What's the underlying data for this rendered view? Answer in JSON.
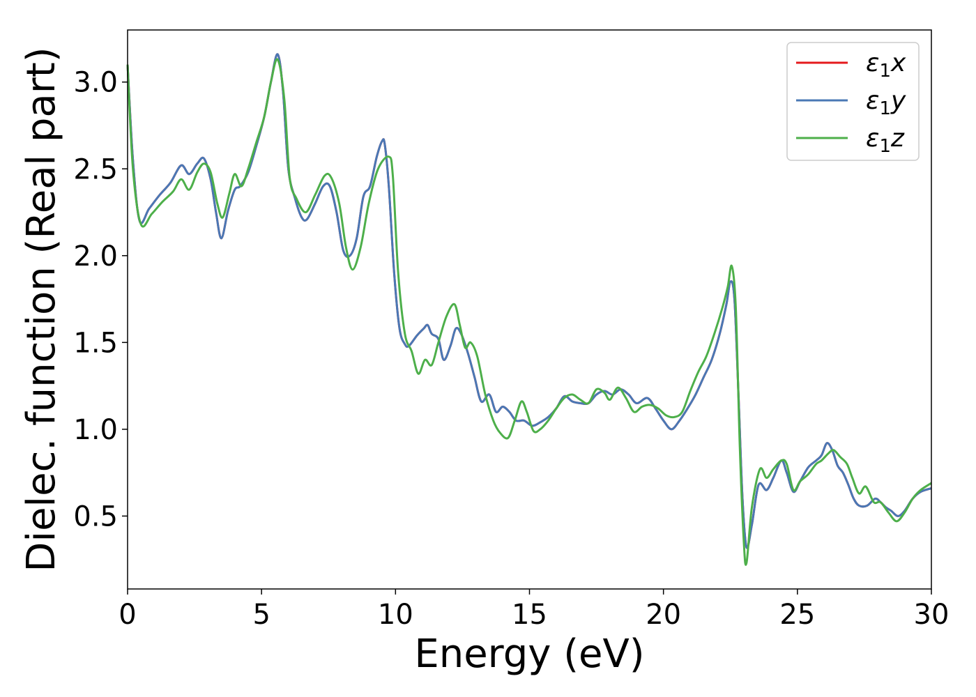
{
  "chart_data": {
    "type": "line",
    "xlabel": "Energy (eV)",
    "ylabel": "Dielec. function (Real part)",
    "xlim": [
      0,
      30
    ],
    "ylim": [
      0.08,
      3.3
    ],
    "x_ticks": [
      0,
      5,
      10,
      15,
      20,
      25,
      30
    ],
    "x_tick_labels": [
      "0",
      "5",
      "10",
      "15",
      "20",
      "25",
      "30"
    ],
    "y_ticks": [
      0.5,
      1.0,
      1.5,
      2.0,
      2.5,
      3.0
    ],
    "y_tick_labels": [
      "0.5",
      "1.0",
      "1.5",
      "2.0",
      "2.5",
      "3.0"
    ],
    "grid": false,
    "legend_position": "top-right",
    "series": [
      {
        "name": "ε₁x",
        "legend_main": "ε",
        "legend_sub": "1",
        "legend_var": "x",
        "color": "#e41a1c",
        "x": [
          0,
          0.2,
          0.45,
          0.8,
          1.2,
          1.6,
          2.0,
          2.3,
          2.6,
          2.85,
          3.1,
          3.3,
          3.5,
          3.75,
          4.0,
          4.2,
          4.5,
          4.8,
          5.1,
          5.35,
          5.6,
          5.8,
          6.0,
          6.25,
          6.5,
          6.7,
          7.0,
          7.3,
          7.55,
          7.8,
          8.05,
          8.3,
          8.55,
          8.8,
          9.05,
          9.3,
          9.5,
          9.6,
          9.75,
          9.95,
          10.15,
          10.35,
          10.5,
          10.8,
          11.05,
          11.2,
          11.35,
          11.6,
          11.8,
          12.05,
          12.25,
          12.45,
          12.7,
          12.95,
          13.2,
          13.5,
          13.75,
          14.0,
          14.25,
          14.5,
          14.8,
          15.1,
          15.4,
          15.7,
          16.0,
          16.3,
          16.6,
          16.9,
          17.2,
          17.5,
          17.8,
          18.1,
          18.4,
          18.7,
          19.0,
          19.4,
          19.7,
          20.0,
          20.3,
          20.6,
          20.9,
          21.2,
          21.5,
          21.8,
          22.1,
          22.35,
          22.5,
          22.65,
          22.8,
          22.95,
          23.1,
          23.3,
          23.55,
          23.85,
          24.1,
          24.4,
          24.6,
          24.85,
          25.1,
          25.4,
          25.7,
          25.9,
          26.1,
          26.3,
          26.5,
          26.7,
          26.9,
          27.1,
          27.3,
          27.6,
          27.9,
          28.1,
          28.3,
          28.5,
          28.75,
          29.0,
          29.3,
          29.6,
          30.0
        ],
        "values": [
          3.1,
          2.55,
          2.2,
          2.27,
          2.35,
          2.42,
          2.52,
          2.47,
          2.53,
          2.56,
          2.44,
          2.25,
          2.1,
          2.26,
          2.38,
          2.4,
          2.48,
          2.63,
          2.8,
          3.0,
          3.16,
          2.95,
          2.5,
          2.33,
          2.22,
          2.21,
          2.3,
          2.4,
          2.4,
          2.25,
          2.03,
          2.0,
          2.1,
          2.34,
          2.4,
          2.57,
          2.66,
          2.64,
          2.4,
          1.9,
          1.58,
          1.49,
          1.48,
          1.54,
          1.58,
          1.6,
          1.55,
          1.52,
          1.4,
          1.48,
          1.58,
          1.55,
          1.44,
          1.3,
          1.16,
          1.2,
          1.1,
          1.13,
          1.1,
          1.05,
          1.05,
          1.02,
          1.04,
          1.07,
          1.12,
          1.19,
          1.16,
          1.15,
          1.15,
          1.2,
          1.22,
          1.2,
          1.23,
          1.2,
          1.15,
          1.18,
          1.12,
          1.05,
          1.0,
          1.05,
          1.12,
          1.2,
          1.3,
          1.4,
          1.55,
          1.72,
          1.85,
          1.75,
          1.2,
          0.6,
          0.32,
          0.45,
          0.68,
          0.65,
          0.72,
          0.82,
          0.75,
          0.64,
          0.7,
          0.78,
          0.82,
          0.85,
          0.92,
          0.88,
          0.79,
          0.75,
          0.68,
          0.6,
          0.56,
          0.56,
          0.6,
          0.58,
          0.55,
          0.53,
          0.5,
          0.53,
          0.6,
          0.64,
          0.66
        ]
      },
      {
        "name": "ε₁y",
        "legend_main": "ε",
        "legend_sub": "1",
        "legend_var": "y",
        "color": "#4a78b5",
        "x": [
          0,
          0.2,
          0.45,
          0.8,
          1.2,
          1.6,
          2.0,
          2.3,
          2.6,
          2.85,
          3.1,
          3.3,
          3.5,
          3.75,
          4.0,
          4.2,
          4.5,
          4.8,
          5.1,
          5.35,
          5.6,
          5.8,
          6.0,
          6.25,
          6.5,
          6.7,
          7.0,
          7.3,
          7.55,
          7.8,
          8.05,
          8.3,
          8.55,
          8.8,
          9.05,
          9.3,
          9.5,
          9.6,
          9.75,
          9.95,
          10.15,
          10.35,
          10.5,
          10.8,
          11.05,
          11.2,
          11.35,
          11.6,
          11.8,
          12.05,
          12.25,
          12.45,
          12.7,
          12.95,
          13.2,
          13.5,
          13.75,
          14.0,
          14.25,
          14.5,
          14.8,
          15.1,
          15.4,
          15.7,
          16.0,
          16.3,
          16.6,
          16.9,
          17.2,
          17.5,
          17.8,
          18.1,
          18.4,
          18.7,
          19.0,
          19.4,
          19.7,
          20.0,
          20.3,
          20.6,
          20.9,
          21.2,
          21.5,
          21.8,
          22.1,
          22.35,
          22.5,
          22.65,
          22.8,
          22.95,
          23.1,
          23.3,
          23.55,
          23.85,
          24.1,
          24.4,
          24.6,
          24.85,
          25.1,
          25.4,
          25.7,
          25.9,
          26.1,
          26.3,
          26.5,
          26.7,
          26.9,
          27.1,
          27.3,
          27.6,
          27.9,
          28.1,
          28.3,
          28.5,
          28.75,
          29.0,
          29.3,
          29.6,
          30.0
        ],
        "values": [
          3.1,
          2.55,
          2.2,
          2.27,
          2.35,
          2.42,
          2.52,
          2.47,
          2.53,
          2.56,
          2.44,
          2.25,
          2.1,
          2.26,
          2.38,
          2.4,
          2.48,
          2.63,
          2.8,
          3.0,
          3.16,
          2.95,
          2.5,
          2.33,
          2.22,
          2.21,
          2.3,
          2.4,
          2.4,
          2.25,
          2.03,
          2.0,
          2.1,
          2.34,
          2.4,
          2.57,
          2.66,
          2.64,
          2.4,
          1.9,
          1.58,
          1.49,
          1.48,
          1.54,
          1.58,
          1.6,
          1.55,
          1.52,
          1.4,
          1.48,
          1.58,
          1.55,
          1.44,
          1.3,
          1.16,
          1.2,
          1.1,
          1.13,
          1.1,
          1.05,
          1.05,
          1.02,
          1.04,
          1.07,
          1.12,
          1.19,
          1.16,
          1.15,
          1.15,
          1.2,
          1.22,
          1.2,
          1.23,
          1.2,
          1.15,
          1.18,
          1.12,
          1.05,
          1.0,
          1.05,
          1.12,
          1.2,
          1.3,
          1.4,
          1.55,
          1.72,
          1.85,
          1.75,
          1.2,
          0.6,
          0.32,
          0.45,
          0.68,
          0.65,
          0.72,
          0.82,
          0.75,
          0.64,
          0.7,
          0.78,
          0.82,
          0.85,
          0.92,
          0.88,
          0.79,
          0.75,
          0.68,
          0.6,
          0.56,
          0.56,
          0.6,
          0.58,
          0.55,
          0.53,
          0.5,
          0.53,
          0.6,
          0.64,
          0.66
        ]
      },
      {
        "name": "ε₁z",
        "legend_main": "ε",
        "legend_sub": "1",
        "legend_var": "z",
        "color": "#4daf4a",
        "x": [
          0,
          0.2,
          0.5,
          0.9,
          1.3,
          1.7,
          2.0,
          2.3,
          2.6,
          2.85,
          3.1,
          3.35,
          3.55,
          3.8,
          4.0,
          4.25,
          4.5,
          4.8,
          5.1,
          5.35,
          5.6,
          5.85,
          6.05,
          6.3,
          6.65,
          7.0,
          7.35,
          7.6,
          7.9,
          8.15,
          8.4,
          8.7,
          9.0,
          9.35,
          9.75,
          9.9,
          10.1,
          10.35,
          10.6,
          10.85,
          11.1,
          11.35,
          11.6,
          11.9,
          12.2,
          12.4,
          12.6,
          12.8,
          13.05,
          13.35,
          13.65,
          13.9,
          14.2,
          14.45,
          14.7,
          14.9,
          15.15,
          15.4,
          15.7,
          16.0,
          16.3,
          16.6,
          16.9,
          17.2,
          17.5,
          17.8,
          18.0,
          18.3,
          18.6,
          18.9,
          19.2,
          19.5,
          19.8,
          20.1,
          20.4,
          20.7,
          21.0,
          21.3,
          21.6,
          21.9,
          22.2,
          22.4,
          22.55,
          22.7,
          22.85,
          23.0,
          23.1,
          23.3,
          23.6,
          23.85,
          24.1,
          24.4,
          24.6,
          24.85,
          25.1,
          25.4,
          25.7,
          25.9,
          26.15,
          26.35,
          26.6,
          26.85,
          27.05,
          27.3,
          27.55,
          27.85,
          28.1,
          28.4,
          28.7,
          29.0,
          29.3,
          29.6,
          30.0
        ],
        "values": [
          3.1,
          2.5,
          2.18,
          2.24,
          2.31,
          2.37,
          2.44,
          2.38,
          2.48,
          2.53,
          2.48,
          2.3,
          2.22,
          2.36,
          2.47,
          2.4,
          2.5,
          2.65,
          2.8,
          3.0,
          3.13,
          2.9,
          2.45,
          2.33,
          2.25,
          2.35,
          2.46,
          2.45,
          2.3,
          2.05,
          1.92,
          2.05,
          2.3,
          2.5,
          2.57,
          2.46,
          1.9,
          1.55,
          1.45,
          1.32,
          1.4,
          1.37,
          1.5,
          1.65,
          1.72,
          1.6,
          1.47,
          1.5,
          1.42,
          1.2,
          1.05,
          0.98,
          0.95,
          1.05,
          1.16,
          1.1,
          0.99,
          1.0,
          1.05,
          1.12,
          1.18,
          1.2,
          1.17,
          1.15,
          1.23,
          1.21,
          1.17,
          1.24,
          1.18,
          1.1,
          1.13,
          1.14,
          1.12,
          1.08,
          1.07,
          1.1,
          1.22,
          1.33,
          1.42,
          1.55,
          1.7,
          1.82,
          1.94,
          1.7,
          0.9,
          0.35,
          0.23,
          0.55,
          0.77,
          0.72,
          0.77,
          0.82,
          0.8,
          0.65,
          0.7,
          0.74,
          0.8,
          0.82,
          0.86,
          0.88,
          0.84,
          0.8,
          0.72,
          0.63,
          0.67,
          0.58,
          0.58,
          0.52,
          0.47,
          0.52,
          0.6,
          0.65,
          0.69
        ]
      }
    ]
  }
}
